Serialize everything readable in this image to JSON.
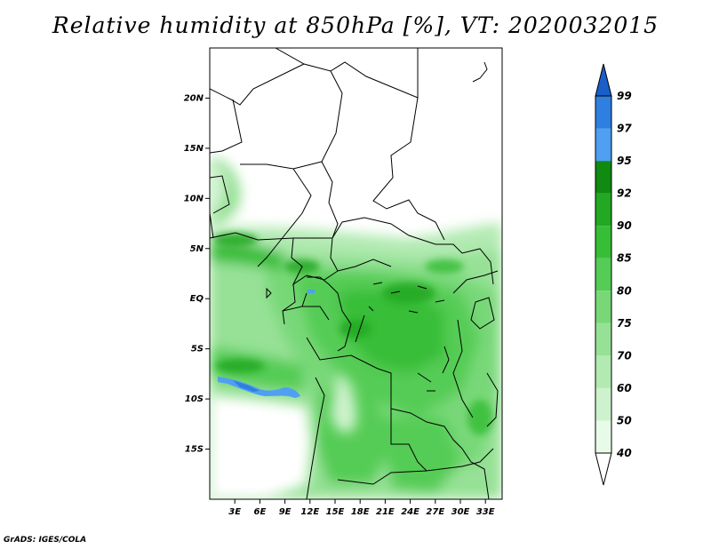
{
  "title": "Relative humidity at 850hPa [%], VT: 2020032015",
  "credit": "GrADS: IGES/COLA",
  "map": {
    "lon_range": [
      0,
      35
    ],
    "lat_range": [
      -20,
      25
    ],
    "lat_ticks": [
      {
        "value": 20,
        "label": "20N"
      },
      {
        "value": 15,
        "label": "15N"
      },
      {
        "value": 10,
        "label": "10N"
      },
      {
        "value": 5,
        "label": "5N"
      },
      {
        "value": 0,
        "label": "EQ"
      },
      {
        "value": -5,
        "label": "5S"
      },
      {
        "value": -10,
        "label": "10S"
      },
      {
        "value": -15,
        "label": "15S"
      }
    ],
    "lon_ticks": [
      {
        "value": 3,
        "label": "3E"
      },
      {
        "value": 6,
        "label": "6E"
      },
      {
        "value": 9,
        "label": "9E"
      },
      {
        "value": 12,
        "label": "12E"
      },
      {
        "value": 15,
        "label": "15E"
      },
      {
        "value": 18,
        "label": "18E"
      },
      {
        "value": 21,
        "label": "21E"
      },
      {
        "value": 24,
        "label": "24E"
      },
      {
        "value": 27,
        "label": "27E"
      },
      {
        "value": 30,
        "label": "30E"
      },
      {
        "value": 33,
        "label": "33E"
      }
    ]
  },
  "colorbar": {
    "bins": [
      {
        "label": "40",
        "color": "#ffffff"
      },
      {
        "label": "50",
        "color": "#e8fae8"
      },
      {
        "label": "60",
        "color": "#cdf2cd"
      },
      {
        "label": "70",
        "color": "#b2eab2"
      },
      {
        "label": "75",
        "color": "#96e196"
      },
      {
        "label": "80",
        "color": "#78d878"
      },
      {
        "label": "85",
        "color": "#55cc55"
      },
      {
        "label": "90",
        "color": "#37be37"
      },
      {
        "label": "92",
        "color": "#22a822"
      },
      {
        "label": "95",
        "color": "#108a10"
      },
      {
        "label": "97",
        "color": "#4f9ff2"
      },
      {
        "label": "99",
        "color": "#2f7fe0"
      }
    ],
    "over_color": "#1a5ec8",
    "under_color": "#ffffff"
  }
}
